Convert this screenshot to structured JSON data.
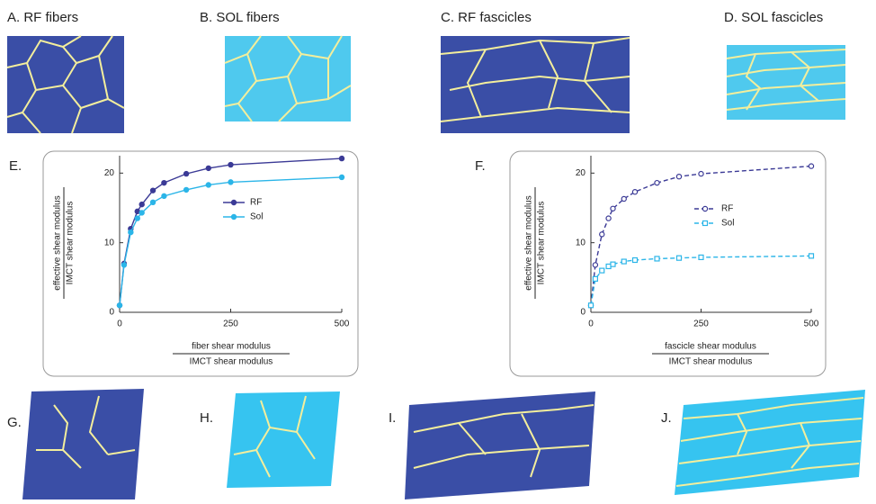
{
  "panels": {
    "A": "A. RF fibers",
    "B": "B. SOL fibers",
    "C": "C. RF fascicles",
    "D": "D. SOL fascicles",
    "G": "G.",
    "H": "H.",
    "I": "I.",
    "J": "J."
  },
  "chart_data": [
    {
      "type": "line",
      "label": "E.",
      "ylabel": [
        "effective shear modulus",
        "IMCT shear modulus"
      ],
      "xlabel": [
        "fiber shear modulus",
        "IMCT shear modulus"
      ],
      "x": [
        0,
        10,
        25,
        40,
        50,
        75,
        100,
        150,
        200,
        250,
        500
      ],
      "xlim": [
        0,
        500
      ],
      "xticks": [
        0,
        250,
        500
      ],
      "ylim": [
        0,
        22.5
      ],
      "yticks": [
        0,
        10,
        20
      ],
      "series": [
        {
          "name": "RF",
          "color": "#3b3a96",
          "linestyle": "solid",
          "marker": "circle",
          "marker_filled": true,
          "values": [
            1,
            7,
            12,
            14.5,
            15.5,
            17.5,
            18.6,
            19.9,
            20.7,
            21.2,
            22.1
          ]
        },
        {
          "name": "Sol",
          "color": "#2bb5e8",
          "linestyle": "solid",
          "marker": "circle",
          "marker_filled": true,
          "values": [
            1,
            6.8,
            11.5,
            13.5,
            14.3,
            15.8,
            16.7,
            17.6,
            18.3,
            18.7,
            19.4
          ]
        }
      ]
    },
    {
      "type": "line",
      "label": "F.",
      "ylabel": [
        "effective shear modulus",
        "IMCT shear modulus"
      ],
      "xlabel": [
        "fascicle shear modulus",
        "IMCT shear modulus"
      ],
      "x": [
        0,
        10,
        25,
        40,
        50,
        75,
        100,
        150,
        200,
        250,
        500
      ],
      "xlim": [
        0,
        500
      ],
      "xticks": [
        0,
        250,
        500
      ],
      "ylim": [
        0,
        22.5
      ],
      "yticks": [
        0,
        10,
        20
      ],
      "series": [
        {
          "name": "RF",
          "color": "#3b3a96",
          "linestyle": "dashed",
          "marker": "circle",
          "marker_filled": false,
          "values": [
            1,
            6.8,
            11.2,
            13.5,
            14.9,
            16.3,
            17.3,
            18.6,
            19.5,
            19.9,
            21
          ]
        },
        {
          "name": "Sol",
          "color": "#2bb5e8",
          "linestyle": "dashed",
          "marker": "square",
          "marker_filled": false,
          "values": [
            1,
            4.8,
            6,
            6.6,
            6.9,
            7.3,
            7.5,
            7.7,
            7.8,
            7.9,
            8.1
          ]
        }
      ]
    }
  ]
}
